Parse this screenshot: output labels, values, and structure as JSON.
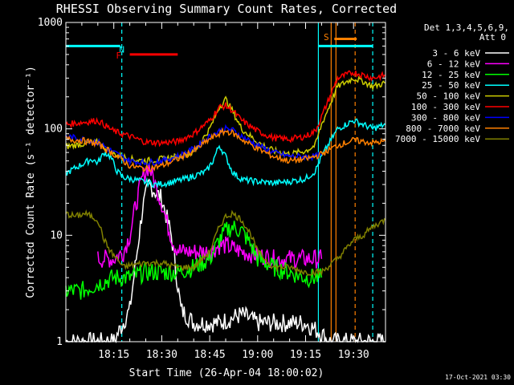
{
  "chart_data": {
    "type": "line",
    "title": "RHESSI Observing Summary Count Rates, Corrected",
    "xlabel": "Start Time (26-Apr-04 18:00:02)",
    "ylabel": "Corrected Count Rate (s⁻¹ detector⁻¹)",
    "y_scale": "log",
    "ylim": [
      1,
      1000
    ],
    "xlim_minutes": [
      0,
      100
    ],
    "x_ticks": [
      {
        "t": 15,
        "label": "18:15"
      },
      {
        "t": 30,
        "label": "18:30"
      },
      {
        "t": 45,
        "label": "18:45"
      },
      {
        "t": 60,
        "label": "19:00"
      },
      {
        "t": 75,
        "label": "19:15"
      },
      {
        "t": 90,
        "label": "19:30"
      }
    ],
    "y_ticks": [
      {
        "v": 1,
        "label": "1"
      },
      {
        "v": 10,
        "label": "10"
      },
      {
        "v": 100,
        "label": "100"
      },
      {
        "v": 1000,
        "label": "1000"
      }
    ],
    "detectors_label": "Det 1,3,4,5,6,9,",
    "attenuator_label": "Att 0",
    "timestamp": "17-Oct-2021 03:30",
    "annotations": [
      {
        "text": "N",
        "t": 17.5,
        "v": 560,
        "color": "#00ffff"
      },
      {
        "text": "F",
        "t": 16.5,
        "v": 490,
        "color": "#ff0000"
      },
      {
        "text": "S",
        "t": 81.5,
        "v": 730,
        "color": "#ff8000"
      }
    ],
    "bars": [
      {
        "t0": 0,
        "t1": 17,
        "v": 600,
        "color": "#00ffff"
      },
      {
        "t0": 79,
        "t1": 96,
        "v": 600,
        "color": "#00ffff"
      },
      {
        "t0": 20,
        "t1": 35,
        "v": 500,
        "color": "#ff0000"
      },
      {
        "t0": 84,
        "t1": 91,
        "v": 700,
        "color": "#ff8000"
      }
    ],
    "vlines": [
      {
        "t": 17.5,
        "color": "#00ffff",
        "style": "dashed"
      },
      {
        "t": 79,
        "color": "#00ffff",
        "style": "solid"
      },
      {
        "t": 96,
        "color": "#00ffff",
        "style": "dashed"
      },
      {
        "t": 83,
        "color": "#ff8000",
        "style": "solid"
      },
      {
        "t": 84.5,
        "color": "#ff8000",
        "style": "solid"
      },
      {
        "t": 90.5,
        "color": "#ff8000",
        "style": "dashed"
      }
    ],
    "series": [
      {
        "name": "3 - 6 keV",
        "color": "#ffffff",
        "x": [
          0,
          10,
          15,
          20,
          22,
          24,
          26,
          30,
          33,
          36,
          40,
          48,
          55,
          60,
          70,
          75,
          78,
          80,
          82,
          85,
          90,
          95,
          100
        ],
        "y": [
          1,
          1,
          1,
          2,
          6,
          18,
          30,
          22,
          10,
          2,
          1.5,
          1.5,
          1.8,
          1.5,
          1.5,
          1.5,
          1.3,
          1.2,
          1,
          1,
          1,
          1,
          1
        ]
      },
      {
        "name": "6 - 12 keV",
        "color": "#ff00ff",
        "x": [
          10,
          15,
          18,
          20,
          22,
          24,
          26,
          28,
          30,
          32,
          34,
          36,
          40,
          45,
          48,
          50,
          55,
          60,
          65,
          70,
          75,
          78,
          80
        ],
        "y": [
          6,
          6,
          7,
          10,
          20,
          35,
          45,
          30,
          20,
          12,
          8,
          7,
          7,
          7,
          8,
          8,
          7,
          6.5,
          6,
          6,
          6,
          6,
          6
        ]
      },
      {
        "name": "12 - 25 keV",
        "color": "#00ff00",
        "x": [
          0,
          5,
          10,
          15,
          20,
          25,
          30,
          35,
          40,
          45,
          48,
          50,
          52,
          55,
          58,
          60,
          65,
          70,
          75,
          78,
          80
        ],
        "y": [
          3,
          3,
          3.5,
          4,
          4,
          4.5,
          4.5,
          4.5,
          5,
          6,
          9,
          11,
          12,
          11,
          8,
          6,
          5,
          4.5,
          4,
          4,
          4
        ]
      },
      {
        "name": "25 - 50 keV",
        "color": "#00ffff",
        "x": [
          0,
          3,
          6,
          8,
          10,
          12,
          14,
          16,
          18,
          20,
          24,
          28,
          32,
          36,
          40,
          44,
          46,
          48,
          50,
          52,
          54,
          56,
          60,
          65,
          70,
          75,
          78,
          80,
          85,
          90,
          93,
          96,
          98,
          100
        ],
        "y": [
          38,
          43,
          48,
          52,
          48,
          60,
          55,
          40,
          35,
          34,
          32,
          30,
          31,
          33,
          36,
          40,
          50,
          70,
          55,
          40,
          35,
          33,
          32,
          31,
          32,
          34,
          40,
          55,
          100,
          120,
          110,
          100,
          105,
          110
        ]
      },
      {
        "name": "50 - 100 keV",
        "color": "#cccc00",
        "x": [
          0,
          5,
          10,
          15,
          20,
          25,
          30,
          35,
          40,
          45,
          48,
          50,
          52,
          55,
          60,
          65,
          70,
          75,
          78,
          80,
          85,
          90,
          93,
          96,
          98,
          100
        ],
        "y": [
          68,
          72,
          75,
          58,
          52,
          50,
          52,
          55,
          60,
          100,
          160,
          190,
          150,
          100,
          75,
          62,
          58,
          62,
          70,
          110,
          250,
          300,
          280,
          250,
          260,
          270
        ]
      },
      {
        "name": "100 - 300 keV",
        "color": "#ff0000",
        "x": [
          0,
          5,
          10,
          15,
          20,
          25,
          30,
          35,
          40,
          45,
          48,
          50,
          52,
          55,
          60,
          65,
          70,
          75,
          78,
          80,
          85,
          90,
          93,
          96,
          98,
          100
        ],
        "y": [
          110,
          115,
          120,
          95,
          85,
          75,
          74,
          76,
          90,
          120,
          160,
          165,
          150,
          120,
          95,
          82,
          80,
          85,
          95,
          130,
          300,
          340,
          320,
          300,
          310,
          320
        ]
      },
      {
        "name": "300 - 800 keV",
        "color": "#0000ff",
        "x": [
          0,
          5,
          10,
          15,
          20,
          25,
          30,
          35,
          40,
          45,
          48,
          50,
          52,
          55,
          60,
          65,
          70,
          75,
          78,
          80
        ],
        "y": [
          85,
          80,
          75,
          60,
          50,
          48,
          50,
          55,
          65,
          85,
          95,
          100,
          98,
          85,
          70,
          60,
          55,
          55,
          55,
          57
        ]
      },
      {
        "name": "800 - 7000 keV",
        "color": "#ff8000",
        "x": [
          0,
          5,
          10,
          15,
          20,
          25,
          30,
          35,
          40,
          45,
          48,
          50,
          52,
          55,
          60,
          65,
          70,
          75,
          78,
          80,
          85,
          90,
          93,
          96,
          98,
          100
        ],
        "y": [
          80,
          78,
          72,
          58,
          45,
          42,
          45,
          52,
          62,
          80,
          90,
          95,
          92,
          80,
          65,
          55,
          50,
          52,
          55,
          58,
          70,
          78,
          76,
          74,
          75,
          76
        ]
      },
      {
        "name": "7000 - 15000 keV",
        "color": "#808000",
        "x": [
          0,
          3,
          6,
          10,
          12,
          14,
          16,
          18,
          20,
          25,
          30,
          35,
          40,
          45,
          48,
          50,
          52,
          55,
          58,
          60,
          65,
          70,
          75,
          78,
          80,
          85,
          90,
          93,
          96,
          98,
          100
        ],
        "y": [
          16,
          15,
          16,
          14,
          9,
          7,
          6,
          5,
          5.2,
          5.5,
          5.5,
          5,
          5,
          7,
          12,
          15,
          16,
          14,
          10,
          7,
          5,
          5,
          4.5,
          4.5,
          4.5,
          6,
          9,
          10,
          12,
          13,
          14
        ]
      }
    ]
  }
}
